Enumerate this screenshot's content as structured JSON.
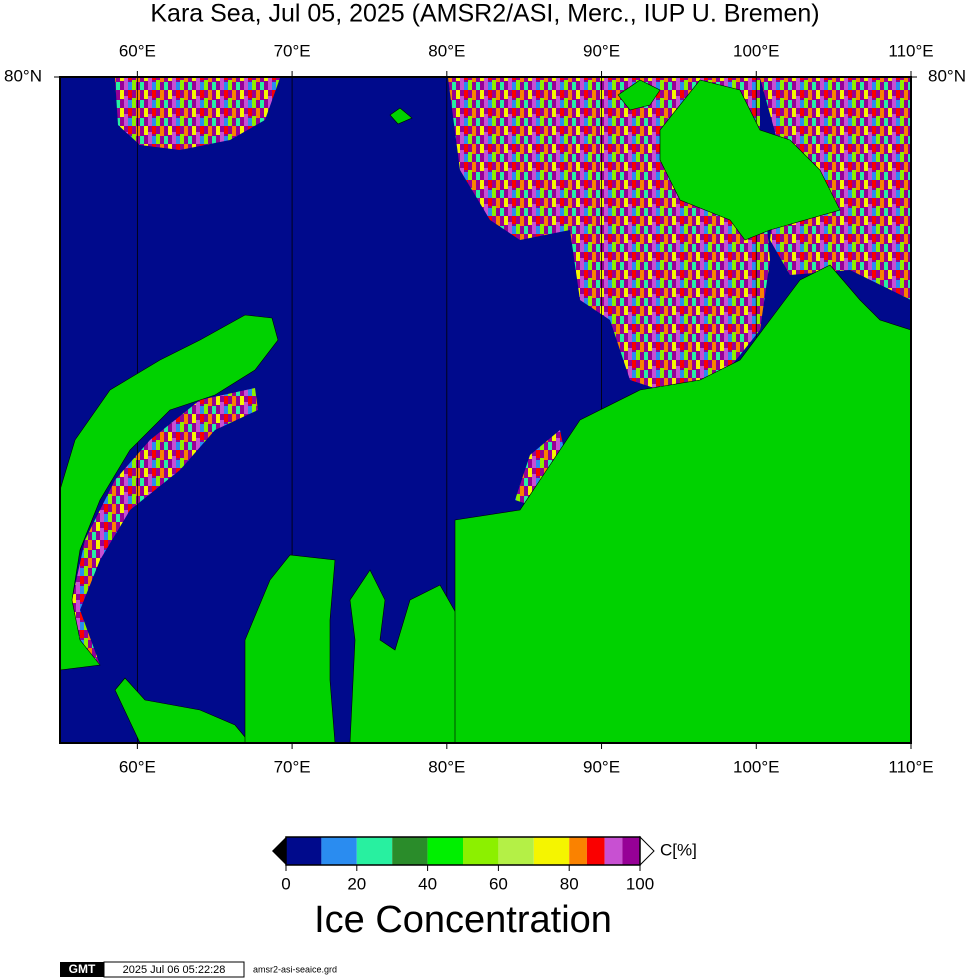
{
  "title": "Kara Sea, Jul 05, 2025 (AMSR2/ASI, Merc., IUP U. Bremen)",
  "map": {
    "type": "map",
    "xlim": [
      55,
      110
    ],
    "ylim": [
      69,
      80
    ],
    "xticks": [
      {
        "value": 60,
        "label": "60°E"
      },
      {
        "value": 70,
        "label": "70°E"
      },
      {
        "value": 80,
        "label": "80°E"
      },
      {
        "value": 90,
        "label": "90°E"
      },
      {
        "value": 100,
        "label": "100°E"
      },
      {
        "value": 110,
        "label": "110°E"
      }
    ],
    "yticks": [
      {
        "value": 80,
        "label": "80°N"
      }
    ],
    "grid": true
  },
  "colorbar": {
    "lim": [
      0,
      100
    ],
    "bounds": [
      0,
      10,
      20,
      30,
      40,
      50,
      60,
      70,
      80,
      85,
      90,
      95,
      100
    ],
    "colors": [
      "#000a8c",
      "#2a8cf0",
      "#28f0a0",
      "#2a8c2a",
      "#00f000",
      "#8cf000",
      "#b4f046",
      "#f5f500",
      "#fa8200",
      "#fa0000",
      "#c850d2",
      "#960096"
    ],
    "ticks": [
      0,
      20,
      40,
      60,
      80,
      100
    ],
    "label": "C[%]",
    "title": "Ice Concentration"
  },
  "footer": {
    "logo": "GMT",
    "timestamp": "2025 Jul 06 05:22:28",
    "file": "amsr2-asi-seaice.grd"
  }
}
